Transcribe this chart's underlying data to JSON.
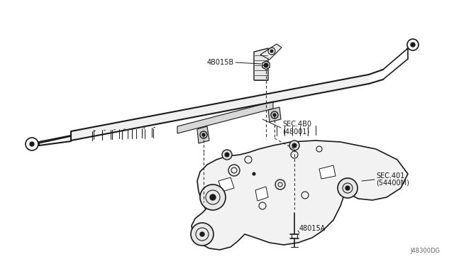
{
  "bg_color": "#ffffff",
  "line_color": "#1a1a1a",
  "diagram_id": "J48300DG",
  "font_size": 7,
  "label_color": "#1a1a1a",
  "figsize": [
    6.4,
    3.72
  ],
  "dpi": 100,
  "rack_label": "SEC.4B0\n(48001)",
  "subframe_label": "SEC.401\n(54400M)",
  "bolt_label_top": "4B015B",
  "bolt_label_bottom": "48015A"
}
